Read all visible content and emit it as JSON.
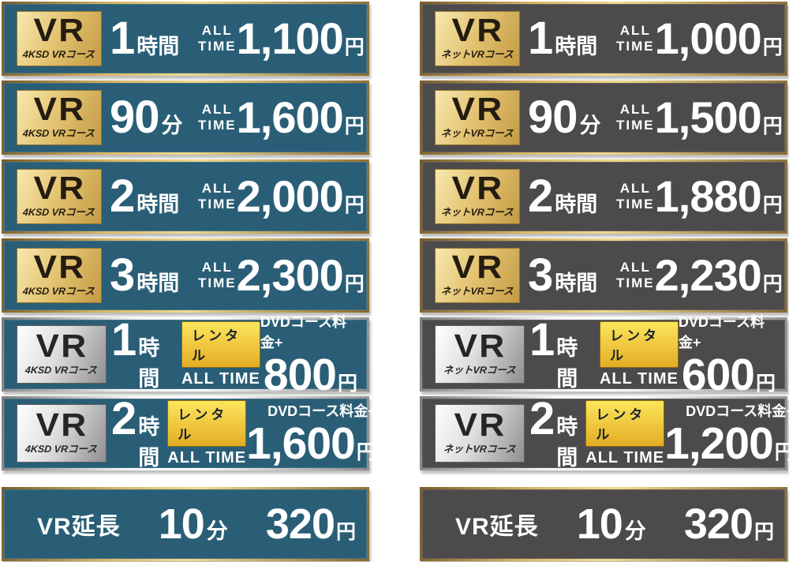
{
  "colors": {
    "left_panel_bg": "#295e76",
    "right_panel_bg": "#4d4a4b",
    "gold_frame": "#d9b865",
    "silver_frame": "#e8e8e8",
    "gold_badge": "#e2c270",
    "silver_badge": "#dedede",
    "rental_badge_bg": "#f0c83c",
    "text_white": "#ffffff",
    "badge_text_dark": "#241c10"
  },
  "columns": [
    {
      "course_name": "4KSD VRコース",
      "rows": [
        {
          "badge_logo": "VR",
          "badge_label": "4KSD VRコース",
          "duration_value": "1",
          "duration_unit": "時間",
          "time_label": "ALL TIME",
          "price_value": "1,100",
          "price_unit": "円"
        },
        {
          "badge_logo": "VR",
          "badge_label": "4KSD VRコース",
          "duration_value": "90",
          "duration_unit": "分",
          "time_label": "ALL TIME",
          "price_value": "1,600",
          "price_unit": "円"
        },
        {
          "badge_logo": "VR",
          "badge_label": "4KSD VRコース",
          "duration_value": "2",
          "duration_unit": "時間",
          "time_label": "ALL TIME",
          "price_value": "2,000",
          "price_unit": "円"
        },
        {
          "badge_logo": "VR",
          "badge_label": "4KSD VRコース",
          "duration_value": "3",
          "duration_unit": "時間",
          "time_label": "ALL TIME",
          "price_value": "2,300",
          "price_unit": "円"
        },
        {
          "badge_logo": "VR",
          "badge_label": "4KSD VRコース",
          "duration_value": "1",
          "duration_unit": "時間",
          "rental_label": "レンタル",
          "time_label": "ALL TIME",
          "surcharge_label": "DVDコース料金+",
          "price_value": "800",
          "price_unit": "円"
        },
        {
          "badge_logo": "VR",
          "badge_label": "4KSD VRコース",
          "duration_value": "2",
          "duration_unit": "時間",
          "rental_label": "レンタル",
          "time_label": "ALL TIME",
          "surcharge_label": "DVDコース料金+",
          "price_value": "1,600",
          "price_unit": "円"
        },
        {
          "title": "VR延長",
          "duration_value": "10",
          "duration_unit": "分",
          "price_value": "320",
          "price_unit": "円"
        }
      ]
    },
    {
      "course_name": "ネットVRコース",
      "rows": [
        {
          "badge_logo": "VR",
          "badge_label": "ネットVRコース",
          "duration_value": "1",
          "duration_unit": "時間",
          "time_label": "ALL TIME",
          "price_value": "1,000",
          "price_unit": "円"
        },
        {
          "badge_logo": "VR",
          "badge_label": "ネットVRコース",
          "duration_value": "90",
          "duration_unit": "分",
          "time_label": "ALL TIME",
          "price_value": "1,500",
          "price_unit": "円"
        },
        {
          "badge_logo": "VR",
          "badge_label": "ネットVRコース",
          "duration_value": "2",
          "duration_unit": "時間",
          "time_label": "ALL TIME",
          "price_value": "1,880",
          "price_unit": "円"
        },
        {
          "badge_logo": "VR",
          "badge_label": "ネットVRコース",
          "duration_value": "3",
          "duration_unit": "時間",
          "time_label": "ALL TIME",
          "price_value": "2,230",
          "price_unit": "円"
        },
        {
          "badge_logo": "VR",
          "badge_label": "ネットVRコース",
          "duration_value": "1",
          "duration_unit": "時間",
          "rental_label": "レンタル",
          "time_label": "ALL TIME",
          "surcharge_label": "DVDコース料金+",
          "price_value": "600",
          "price_unit": "円"
        },
        {
          "badge_logo": "VR",
          "badge_label": "ネットVRコース",
          "duration_value": "2",
          "duration_unit": "時間",
          "rental_label": "レンタル",
          "time_label": "ALL TIME",
          "surcharge_label": "DVDコース料金+",
          "price_value": "1,200",
          "price_unit": "円"
        },
        {
          "title": "VR延長",
          "duration_value": "10",
          "duration_unit": "分",
          "price_value": "320",
          "price_unit": "円"
        }
      ]
    }
  ]
}
